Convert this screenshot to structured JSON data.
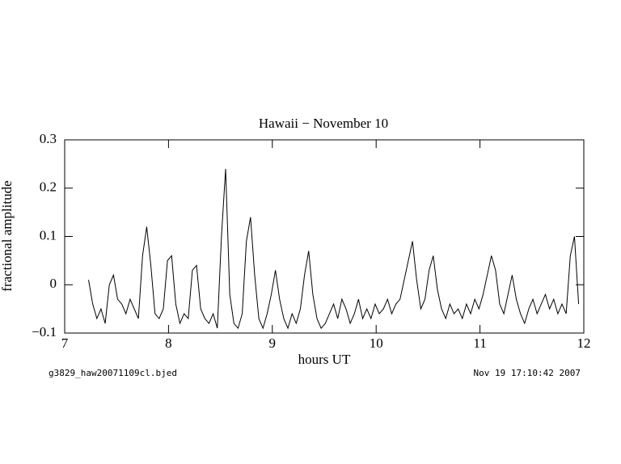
{
  "chart_data": {
    "type": "line",
    "title": "Hawaii − November 10",
    "xlabel": "hours UT",
    "ylabel": "fractional amplitude",
    "footer_left": "g3829_haw20071109cl.bjed",
    "footer_right": "Nov 19 17:10:42 2007",
    "color": "#000000",
    "xlim": [
      7,
      12
    ],
    "xticks": [
      7,
      8,
      9,
      10,
      11,
      12
    ],
    "ylim": [
      -0.1,
      0.3
    ],
    "yticks": [
      {
        "value": -0.1,
        "label": "−0.1"
      },
      0,
      0.1,
      0.2,
      0.3
    ],
    "x": [
      7.23,
      7.27,
      7.31,
      7.35,
      7.39,
      7.43,
      7.47,
      7.51,
      7.55,
      7.59,
      7.63,
      7.67,
      7.71,
      7.75,
      7.79,
      7.83,
      7.87,
      7.91,
      7.95,
      7.99,
      8.03,
      8.07,
      8.11,
      8.15,
      8.19,
      8.23,
      8.27,
      8.31,
      8.35,
      8.39,
      8.43,
      8.47,
      8.51,
      8.55,
      8.59,
      8.63,
      8.67,
      8.71,
      8.75,
      8.79,
      8.83,
      8.87,
      8.91,
      8.95,
      8.99,
      9.03,
      9.07,
      9.11,
      9.15,
      9.19,
      9.23,
      9.27,
      9.31,
      9.35,
      9.39,
      9.43,
      9.47,
      9.51,
      9.55,
      9.59,
      9.63,
      9.67,
      9.71,
      9.75,
      9.79,
      9.83,
      9.87,
      9.91,
      9.95,
      9.99,
      10.03,
      10.07,
      10.11,
      10.15,
      10.19,
      10.23,
      10.27,
      10.31,
      10.35,
      10.39,
      10.43,
      10.47,
      10.51,
      10.55,
      10.59,
      10.63,
      10.67,
      10.71,
      10.75,
      10.79,
      10.83,
      10.87,
      10.91,
      10.95,
      10.99,
      11.03,
      11.07,
      11.11,
      11.15,
      11.19,
      11.23,
      11.27,
      11.31,
      11.35,
      11.39,
      11.43,
      11.47,
      11.51,
      11.55,
      11.59,
      11.63,
      11.67,
      11.71,
      11.75,
      11.79,
      11.83,
      11.87,
      11.91,
      11.95
    ],
    "values": [
      0.01,
      -0.04,
      -0.07,
      -0.05,
      -0.08,
      0.0,
      0.02,
      -0.03,
      -0.04,
      -0.06,
      -0.03,
      -0.05,
      -0.07,
      0.06,
      0.12,
      0.04,
      -0.06,
      -0.07,
      -0.05,
      0.05,
      0.06,
      -0.04,
      -0.08,
      -0.06,
      -0.07,
      0.03,
      0.04,
      -0.05,
      -0.07,
      -0.08,
      -0.06,
      -0.09,
      0.1,
      0.24,
      -0.02,
      -0.08,
      -0.09,
      -0.06,
      0.09,
      0.14,
      0.02,
      -0.07,
      -0.09,
      -0.06,
      -0.02,
      0.03,
      -0.03,
      -0.07,
      -0.09,
      -0.06,
      -0.08,
      -0.05,
      0.02,
      0.07,
      -0.02,
      -0.07,
      -0.09,
      -0.08,
      -0.06,
      -0.04,
      -0.07,
      -0.03,
      -0.05,
      -0.08,
      -0.06,
      -0.03,
      -0.07,
      -0.05,
      -0.07,
      -0.04,
      -0.06,
      -0.05,
      -0.03,
      -0.06,
      -0.04,
      -0.03,
      0.01,
      0.05,
      0.09,
      0.01,
      -0.05,
      -0.03,
      0.03,
      0.06,
      -0.01,
      -0.05,
      -0.07,
      -0.04,
      -0.06,
      -0.05,
      -0.07,
      -0.04,
      -0.06,
      -0.03,
      -0.05,
      -0.02,
      0.02,
      0.06,
      0.03,
      -0.04,
      -0.06,
      -0.02,
      0.02,
      -0.03,
      -0.06,
      -0.08,
      -0.05,
      -0.03,
      -0.06,
      -0.04,
      -0.02,
      -0.05,
      -0.03,
      -0.06,
      -0.04,
      -0.06,
      0.06,
      0.1,
      -0.04
    ]
  }
}
